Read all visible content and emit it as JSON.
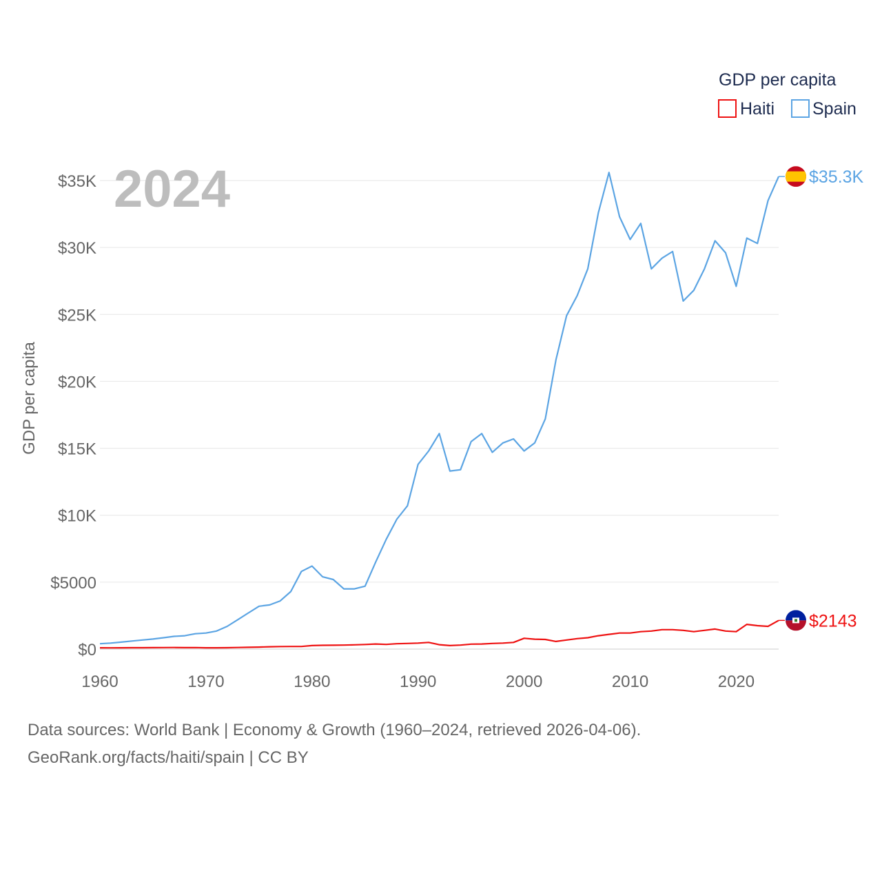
{
  "chart_data": {
    "type": "line",
    "year_label": "2024",
    "ylabel": "GDP per capita",
    "ylim": [
      0,
      36000
    ],
    "xlim": [
      1960,
      2024
    ],
    "yticks": [
      {
        "value": 0,
        "label": "$0"
      },
      {
        "value": 5000,
        "label": "$5000"
      },
      {
        "value": 10000,
        "label": "$10K"
      },
      {
        "value": 15000,
        "label": "$15K"
      },
      {
        "value": 20000,
        "label": "$20K"
      },
      {
        "value": 25000,
        "label": "$25K"
      },
      {
        "value": 30000,
        "label": "$30K"
      },
      {
        "value": 35000,
        "label": "$35K"
      }
    ],
    "xticks": [
      {
        "value": 1960,
        "label": "1960"
      },
      {
        "value": 1970,
        "label": "1970"
      },
      {
        "value": 1980,
        "label": "1980"
      },
      {
        "value": 1990,
        "label": "1990"
      },
      {
        "value": 2000,
        "label": "2000"
      },
      {
        "value": 2010,
        "label": "2010"
      },
      {
        "value": 2020,
        "label": "2020"
      }
    ],
    "legend": {
      "title": "GDP per capita",
      "position": "top-right"
    },
    "series": [
      {
        "name": "Haiti",
        "color": "#ee1111",
        "end_label": "$2143",
        "flag": "haiti",
        "values": [
          98,
          95,
          96,
          102,
          105,
          108,
          114,
          116,
          110,
          112,
          100,
          98,
          105,
          120,
          135,
          150,
          175,
          190,
          195,
          195,
          260,
          285,
          290,
          300,
          320,
          345,
          380,
          350,
          400,
          420,
          450,
          500,
          330,
          260,
          300,
          370,
          380,
          420,
          450,
          500,
          810,
          740,
          720,
          570,
          680,
          780,
          850,
          1000,
          1100,
          1200,
          1200,
          1300,
          1350,
          1450,
          1450,
          1400,
          1300,
          1400,
          1500,
          1350,
          1300,
          1850,
          1750,
          1700,
          2143
        ]
      },
      {
        "name": "Spain",
        "color": "#5ba4e3",
        "end_label": "$35.3K",
        "flag": "spain",
        "values": [
          400,
          450,
          520,
          600,
          680,
          750,
          850,
          950,
          1000,
          1150,
          1200,
          1350,
          1700,
          2200,
          2700,
          3200,
          3300,
          3600,
          4300,
          5800,
          6200,
          5400,
          5200,
          4500,
          4500,
          4700,
          6500,
          8200,
          9700,
          10700,
          13800,
          14800,
          16100,
          13300,
          13400,
          15500,
          16100,
          14700,
          15400,
          15700,
          14800,
          15400,
          17200,
          21600,
          24900,
          26400,
          28400,
          32600,
          35600,
          32300,
          30600,
          31800,
          28400,
          29200,
          29700,
          26000,
          26800,
          28400,
          30500,
          29600,
          27100,
          30700,
          30300,
          33500,
          35300
        ]
      }
    ]
  },
  "footer": {
    "line1": "Data sources: World Bank | Economy & Growth (1960–2024, retrieved 2026-04-06).",
    "line2": "GeoRank.org/facts/haiti/spain | CC BY"
  }
}
